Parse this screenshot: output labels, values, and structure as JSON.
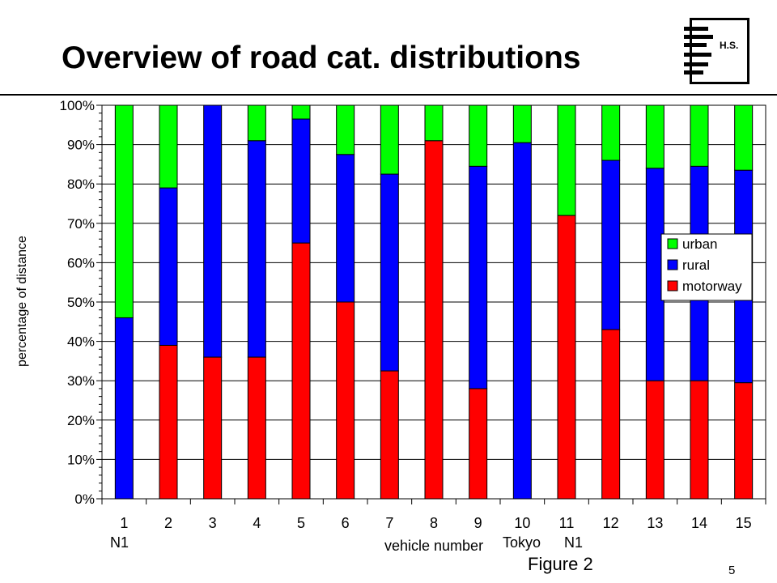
{
  "slide": {
    "title": "Overview of road cat. distributions",
    "logo_text": "H.S.",
    "figure_caption": "Figure 2",
    "page_number": "5"
  },
  "chart_data": {
    "type": "bar",
    "stacked": true,
    "percent": true,
    "categories": [
      "1",
      "2",
      "3",
      "4",
      "5",
      "6",
      "7",
      "8",
      "9",
      "10",
      "11",
      "12",
      "13",
      "14",
      "15"
    ],
    "category_sublabels": [
      {
        "category": "1",
        "text": "N1"
      },
      {
        "category": "10",
        "text": "Tokyo"
      },
      {
        "category": "11",
        "text": "N1"
      }
    ],
    "xlabel": "vehicle number",
    "ylabel": "percentage of distance",
    "ylim": [
      0,
      100
    ],
    "yticks": [
      "0%",
      "10%",
      "20%",
      "30%",
      "40%",
      "50%",
      "60%",
      "70%",
      "80%",
      "90%",
      "100%"
    ],
    "grid": "horizontal",
    "legend_position": "right",
    "series": [
      {
        "name": "motorway",
        "color": "#ff0000",
        "values": [
          0,
          39,
          36,
          36,
          65,
          50,
          32.5,
          91,
          28,
          0,
          72,
          43,
          30,
          30,
          29.5
        ]
      },
      {
        "name": "rural",
        "color": "#0000ff",
        "values": [
          46,
          40,
          64,
          55,
          31.5,
          37.5,
          50,
          0,
          56.5,
          90.5,
          0,
          43,
          54,
          54.5,
          54
        ]
      },
      {
        "name": "urban",
        "color": "#00ff00",
        "values": [
          54,
          21,
          0,
          9,
          3.5,
          12.5,
          17.5,
          9,
          15.5,
          9.5,
          28,
          14,
          16,
          15.5,
          16.5
        ]
      }
    ]
  }
}
